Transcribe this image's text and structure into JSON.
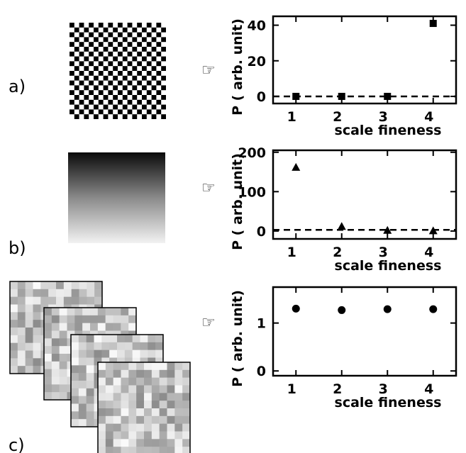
{
  "panel_labels": [
    "a)",
    "b)",
    "c)"
  ],
  "pointer_glyph": "☞",
  "chart_data": [
    {
      "type": "scatter",
      "panel": "a)",
      "marker": "square",
      "title": "",
      "xlabel": "scale fineness",
      "ylabel": "P ( arb. unit)",
      "x": [
        1,
        2,
        3,
        4
      ],
      "x_ticks": [
        "1",
        "2",
        "3",
        "4"
      ],
      "y": [
        0,
        0,
        0,
        41
      ],
      "y_ticks": [
        0,
        20,
        40
      ],
      "xlim": [
        0.5,
        4.5
      ],
      "ylim": [
        -4,
        45
      ],
      "reference_line_y": 0,
      "grid": false
    },
    {
      "type": "scatter",
      "panel": "b)",
      "marker": "triangle",
      "title": "",
      "xlabel": "scale fineness",
      "ylabel": "P ( arb. unit)",
      "x": [
        1,
        2,
        3,
        4
      ],
      "x_ticks": [
        "1",
        "2",
        "3",
        "4"
      ],
      "y": [
        162,
        12,
        2,
        1
      ],
      "y_ticks": [
        0,
        100,
        200
      ],
      "xlim": [
        0.5,
        4.5
      ],
      "ylim": [
        -20,
        205
      ],
      "reference_line_y": 3,
      "grid": false
    },
    {
      "type": "scatter",
      "panel": "c)",
      "marker": "circle",
      "title": "",
      "xlabel": "scale fineness",
      "ylabel": "P ( arb. unit)",
      "x": [
        1,
        2,
        3,
        4
      ],
      "x_ticks": [
        "1",
        "2",
        "3",
        "4"
      ],
      "y": [
        1.3,
        1.27,
        1.29,
        1.29
      ],
      "y_ticks": [
        0,
        1
      ],
      "xlim": [
        0.5,
        4.5
      ],
      "ylim": [
        -0.1,
        1.75
      ],
      "grid": false
    }
  ]
}
